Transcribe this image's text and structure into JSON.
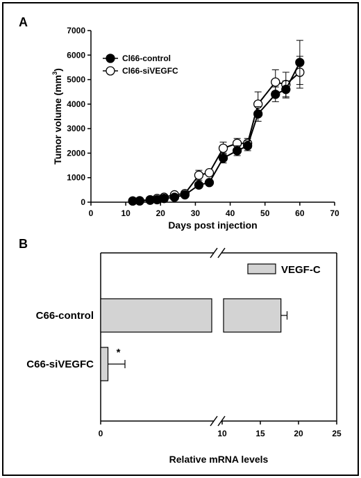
{
  "panels": [
    {
      "letter": "A",
      "chart_data": {
        "type": "line",
        "xlabel": "Days post injection",
        "ylabel_main": "Tumor volume (mm",
        "ylabel_sup": "3",
        "ylabel_tail": ")",
        "xlim": [
          0,
          70
        ],
        "ylim": [
          0,
          7000
        ],
        "xticks": [
          0,
          10,
          20,
          30,
          40,
          50,
          60,
          70
        ],
        "yticks": [
          0,
          1000,
          2000,
          3000,
          4000,
          5000,
          6000,
          7000
        ],
        "grid": false,
        "legend_position": "top-left",
        "series": [
          {
            "name": "Cl66-control",
            "marker": "filled-circle",
            "x": [
              12,
              14,
              17,
              19,
              21,
              24,
              27,
              31,
              34,
              38,
              42,
              45,
              48,
              53,
              56,
              60
            ],
            "y": [
              50,
              50,
              80,
              100,
              150,
              200,
              300,
              700,
              800,
              1800,
              2100,
              2300,
              3600,
              4400,
              4600,
              5700
            ],
            "err": [
              0,
              0,
              0,
              0,
              0,
              0,
              0,
              0,
              0,
              200,
              200,
              200,
              300,
              300,
              350,
              900
            ]
          },
          {
            "name": "Cl66-siVEGFC",
            "marker": "open-circle",
            "x": [
              12,
              14,
              17,
              19,
              21,
              24,
              27,
              31,
              34,
              38,
              42,
              45,
              48,
              53,
              56,
              60
            ],
            "y": [
              50,
              60,
              100,
              150,
              200,
              300,
              350,
              1100,
              1200,
              2200,
              2400,
              2400,
              4000,
              4900,
              4800,
              5300
            ],
            "err": [
              0,
              0,
              0,
              0,
              0,
              0,
              0,
              200,
              0,
              250,
              200,
              200,
              500,
              500,
              500,
              650
            ]
          }
        ]
      }
    },
    {
      "letter": "B",
      "chart_data": {
        "type": "bar",
        "orientation": "horizontal",
        "categories": [
          "C66-control",
          "C66-siVEGFC"
        ],
        "series": [
          {
            "name": "VEGF-C",
            "values": [
              17.7,
              0.6
            ],
            "err": [
              0.8,
              1.4
            ],
            "color": "#d3d3d3"
          }
        ],
        "xlabel": "Relative mRNA levels",
        "xticks": [
          0,
          10,
          15,
          20,
          25
        ],
        "axis_break": [
          1,
          9
        ],
        "xlim": [
          0,
          25
        ],
        "annotations": [
          {
            "category": "C66-siVEGFC",
            "text": "*"
          }
        ],
        "legend_position": "top-right",
        "grid": false
      }
    }
  ]
}
